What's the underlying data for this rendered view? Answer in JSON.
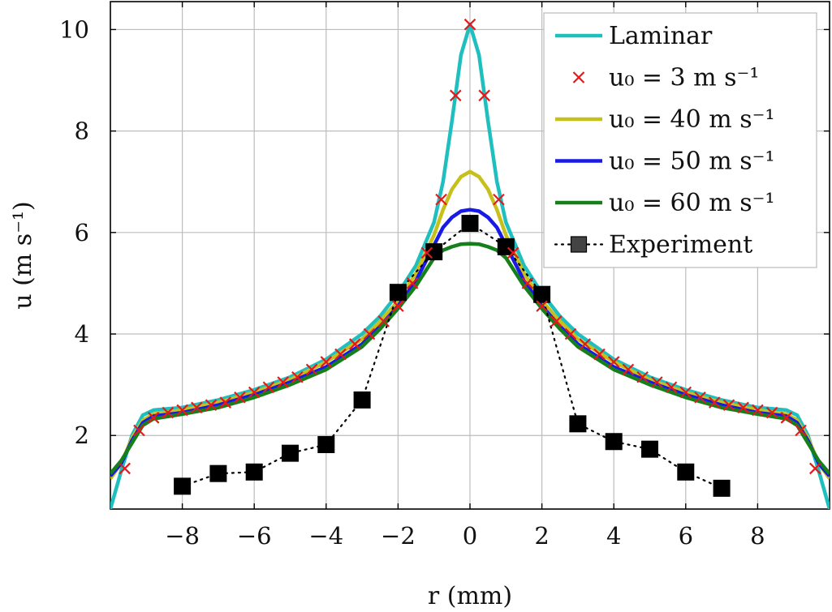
{
  "chart_data": {
    "type": "line",
    "xlabel": "r (mm)",
    "ylabel": "u (m s⁻¹)",
    "xlim": [
      -10,
      10
    ],
    "ylim": [
      0.55,
      10.55
    ],
    "x_ticks": [
      -8,
      -6,
      -4,
      -2,
      0,
      2,
      4,
      6,
      8
    ],
    "y_ticks": [
      2,
      4,
      6,
      8,
      10
    ],
    "x_tick_labels": [
      "−8",
      "−6",
      "−4",
      "−2",
      "0",
      "2",
      "4",
      "6",
      "8"
    ],
    "y_tick_labels": [
      "2",
      "4",
      "6",
      "8",
      "10"
    ],
    "grid": true,
    "legend_position": "top-right",
    "series": [
      {
        "name": "Laminar",
        "style": "line",
        "color": "#1fbfbf",
        "x": [
          -10,
          -9.7,
          -9.4,
          -9.1,
          -8.8,
          -8,
          -7,
          -6,
          -5,
          -4,
          -3,
          -2.5,
          -2,
          -1.5,
          -1,
          -0.75,
          -0.5,
          -0.25,
          0,
          0.25,
          0.5,
          0.75,
          1,
          1.5,
          2,
          2.5,
          3,
          4,
          5,
          6,
          7,
          8,
          8.8,
          9.1,
          9.4,
          9.7,
          10
        ],
        "y": [
          0.55,
          1.3,
          2.0,
          2.4,
          2.5,
          2.55,
          2.7,
          2.9,
          3.15,
          3.5,
          4.0,
          4.35,
          4.8,
          5.35,
          6.2,
          7.0,
          8.2,
          9.5,
          10.1,
          9.5,
          8.2,
          7.0,
          6.2,
          5.35,
          4.8,
          4.35,
          4.0,
          3.5,
          3.15,
          2.9,
          2.7,
          2.55,
          2.5,
          2.4,
          2.0,
          1.3,
          0.55
        ]
      },
      {
        "name": "u₀ = 3 m s⁻¹",
        "style": "markers",
        "marker": "x",
        "color": "#e31a1c",
        "x": [
          -9.6,
          -9.2,
          -8.8,
          -8.4,
          -8.0,
          -7.6,
          -7.2,
          -6.8,
          -6.4,
          -6.0,
          -5.6,
          -5.2,
          -4.8,
          -4.4,
          -4.0,
          -3.6,
          -3.2,
          -2.8,
          -2.4,
          -2.0,
          -1.6,
          -1.2,
          -0.8,
          -0.4,
          0,
          0.4,
          0.8,
          1.2,
          1.6,
          2.0,
          2.4,
          2.8,
          3.2,
          3.6,
          4.0,
          4.4,
          4.8,
          5.2,
          5.6,
          6.0,
          6.4,
          6.8,
          7.2,
          7.6,
          8.0,
          8.4,
          8.8,
          9.2,
          9.6
        ],
        "y": [
          1.35,
          2.1,
          2.35,
          2.45,
          2.5,
          2.55,
          2.6,
          2.65,
          2.75,
          2.85,
          2.95,
          3.05,
          3.15,
          3.3,
          3.45,
          3.6,
          3.8,
          4.0,
          4.25,
          4.55,
          5.0,
          5.6,
          6.65,
          8.7,
          10.1,
          8.7,
          6.65,
          5.6,
          5.0,
          4.55,
          4.25,
          4.0,
          3.8,
          3.6,
          3.45,
          3.3,
          3.15,
          3.05,
          2.95,
          2.85,
          2.75,
          2.65,
          2.6,
          2.55,
          2.5,
          2.45,
          2.35,
          2.1,
          1.35
        ]
      },
      {
        "name": "u₀ = 40 m s⁻¹",
        "style": "line",
        "color": "#c8c01a",
        "x": [
          -10,
          -9.7,
          -9.4,
          -9.1,
          -8.8,
          -8,
          -7,
          -6,
          -5,
          -4,
          -3,
          -2.5,
          -2,
          -1.5,
          -1,
          -0.75,
          -0.5,
          -0.25,
          0,
          0.25,
          0.5,
          0.75,
          1,
          1.5,
          2,
          2.5,
          3,
          4,
          5,
          6,
          7,
          8,
          8.8,
          9.1,
          9.4,
          9.7,
          10
        ],
        "y": [
          1.15,
          1.45,
          1.95,
          2.3,
          2.42,
          2.5,
          2.65,
          2.85,
          3.1,
          3.45,
          3.9,
          4.25,
          4.65,
          5.2,
          5.95,
          6.45,
          6.85,
          7.1,
          7.2,
          7.1,
          6.85,
          6.45,
          5.95,
          5.2,
          4.65,
          4.25,
          3.9,
          3.45,
          3.1,
          2.85,
          2.65,
          2.5,
          2.42,
          2.3,
          1.95,
          1.45,
          1.15
        ]
      },
      {
        "name": "u₀ = 50 m s⁻¹",
        "style": "line",
        "color": "#1a1ae6",
        "x": [
          -10,
          -9.7,
          -9.4,
          -9.1,
          -8.8,
          -8,
          -7,
          -6,
          -5,
          -4,
          -3,
          -2.5,
          -2,
          -1.5,
          -1,
          -0.75,
          -0.5,
          -0.25,
          0,
          0.25,
          0.5,
          0.75,
          1,
          1.5,
          2,
          2.5,
          3,
          4,
          5,
          6,
          7,
          8,
          8.8,
          9.1,
          9.4,
          9.7,
          10
        ],
        "y": [
          1.2,
          1.45,
          1.9,
          2.25,
          2.38,
          2.45,
          2.6,
          2.8,
          3.05,
          3.35,
          3.8,
          4.15,
          4.55,
          5.05,
          5.75,
          6.1,
          6.3,
          6.42,
          6.45,
          6.42,
          6.3,
          6.1,
          5.75,
          5.05,
          4.55,
          4.15,
          3.8,
          3.35,
          3.05,
          2.8,
          2.6,
          2.45,
          2.38,
          2.25,
          1.9,
          1.45,
          1.2
        ]
      },
      {
        "name": "u₀ = 60 m s⁻¹",
        "style": "line",
        "color": "#15801a",
        "x": [
          -10,
          -9.7,
          -9.4,
          -9.1,
          -8.8,
          -8,
          -7,
          -6,
          -5,
          -4,
          -3,
          -2.5,
          -2,
          -1.5,
          -1,
          -0.75,
          -0.5,
          -0.25,
          0,
          0.25,
          0.5,
          0.75,
          1,
          1.5,
          2,
          2.5,
          3,
          4,
          5,
          6,
          7,
          8,
          8.8,
          9.1,
          9.4,
          9.7,
          10
        ],
        "y": [
          1.25,
          1.5,
          1.85,
          2.2,
          2.33,
          2.42,
          2.55,
          2.75,
          3.0,
          3.3,
          3.75,
          4.1,
          4.5,
          4.95,
          5.5,
          5.65,
          5.72,
          5.77,
          5.78,
          5.77,
          5.72,
          5.65,
          5.5,
          4.95,
          4.5,
          4.1,
          3.75,
          3.3,
          3.0,
          2.75,
          2.55,
          2.42,
          2.33,
          2.2,
          1.85,
          1.5,
          1.25
        ]
      },
      {
        "name": "Experiment",
        "style": "dotted-line-square-markers",
        "color": "#000000",
        "x": [
          -8,
          -7,
          -6,
          -5,
          -4,
          -3,
          -2,
          -1,
          0,
          1,
          2,
          3,
          4,
          5,
          6,
          7
        ],
        "y": [
          1.0,
          1.25,
          1.28,
          1.65,
          1.82,
          2.7,
          4.82,
          5.62,
          6.18,
          5.72,
          4.78,
          2.23,
          1.88,
          1.73,
          1.28,
          0.96
        ]
      }
    ]
  }
}
